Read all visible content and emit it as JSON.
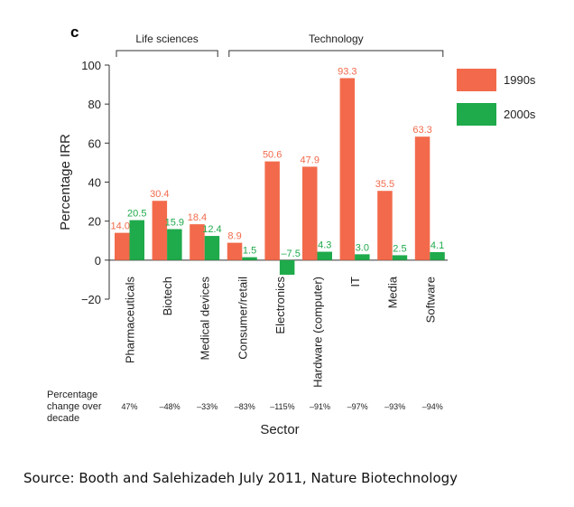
{
  "chart_data": {
    "type": "bar",
    "panel_label": "c",
    "ylabel": "Percentage IRR",
    "xlabel": "Sector",
    "ylim": [
      -20,
      100
    ],
    "yticks": [
      -20,
      0,
      20,
      40,
      60,
      80,
      100
    ],
    "categories": [
      "Pharmaceuticals",
      "Biotech",
      "Medical devices",
      "Consumer/retail",
      "Electronics",
      "Hardware (computer)",
      "IT",
      "Media",
      "Software"
    ],
    "series": [
      {
        "name": "1990s",
        "color": "#f26a4b",
        "values": [
          14.0,
          30.4,
          18.4,
          8.9,
          50.6,
          47.9,
          93.3,
          35.5,
          63.3
        ]
      },
      {
        "name": "2000s",
        "color": "#1faa4b",
        "values": [
          20.5,
          15.9,
          12.4,
          1.5,
          -7.5,
          4.3,
          3.0,
          2.5,
          4.1
        ]
      }
    ],
    "data_labels": {
      "1990s": [
        "14.0",
        "30.4",
        "18.4",
        "8.9",
        "50.6",
        "47.9",
        "93.3",
        "35.5",
        "63.3"
      ],
      "2000s": [
        "20.5",
        "15.9",
        "12.4",
        "1.5",
        "–7.5",
        "4.3",
        "3.0",
        "2.5",
        "4.1"
      ]
    },
    "groups": [
      {
        "label": "Life sciences",
        "from": 0,
        "to": 2
      },
      {
        "label": "Technology",
        "from": 3,
        "to": 8
      }
    ],
    "change_row": {
      "label_lines": [
        "Percentage",
        "change over",
        "decade"
      ],
      "values": [
        "47%",
        "–48%",
        "–33%",
        "–83%",
        "–115%",
        "–91%",
        "–97%",
        "–93%",
        "–94%"
      ]
    },
    "legend_position": "top-right",
    "grid": false
  },
  "source_text": "Source: Booth and Salehizadeh July 2011, Nature Biotechnology"
}
